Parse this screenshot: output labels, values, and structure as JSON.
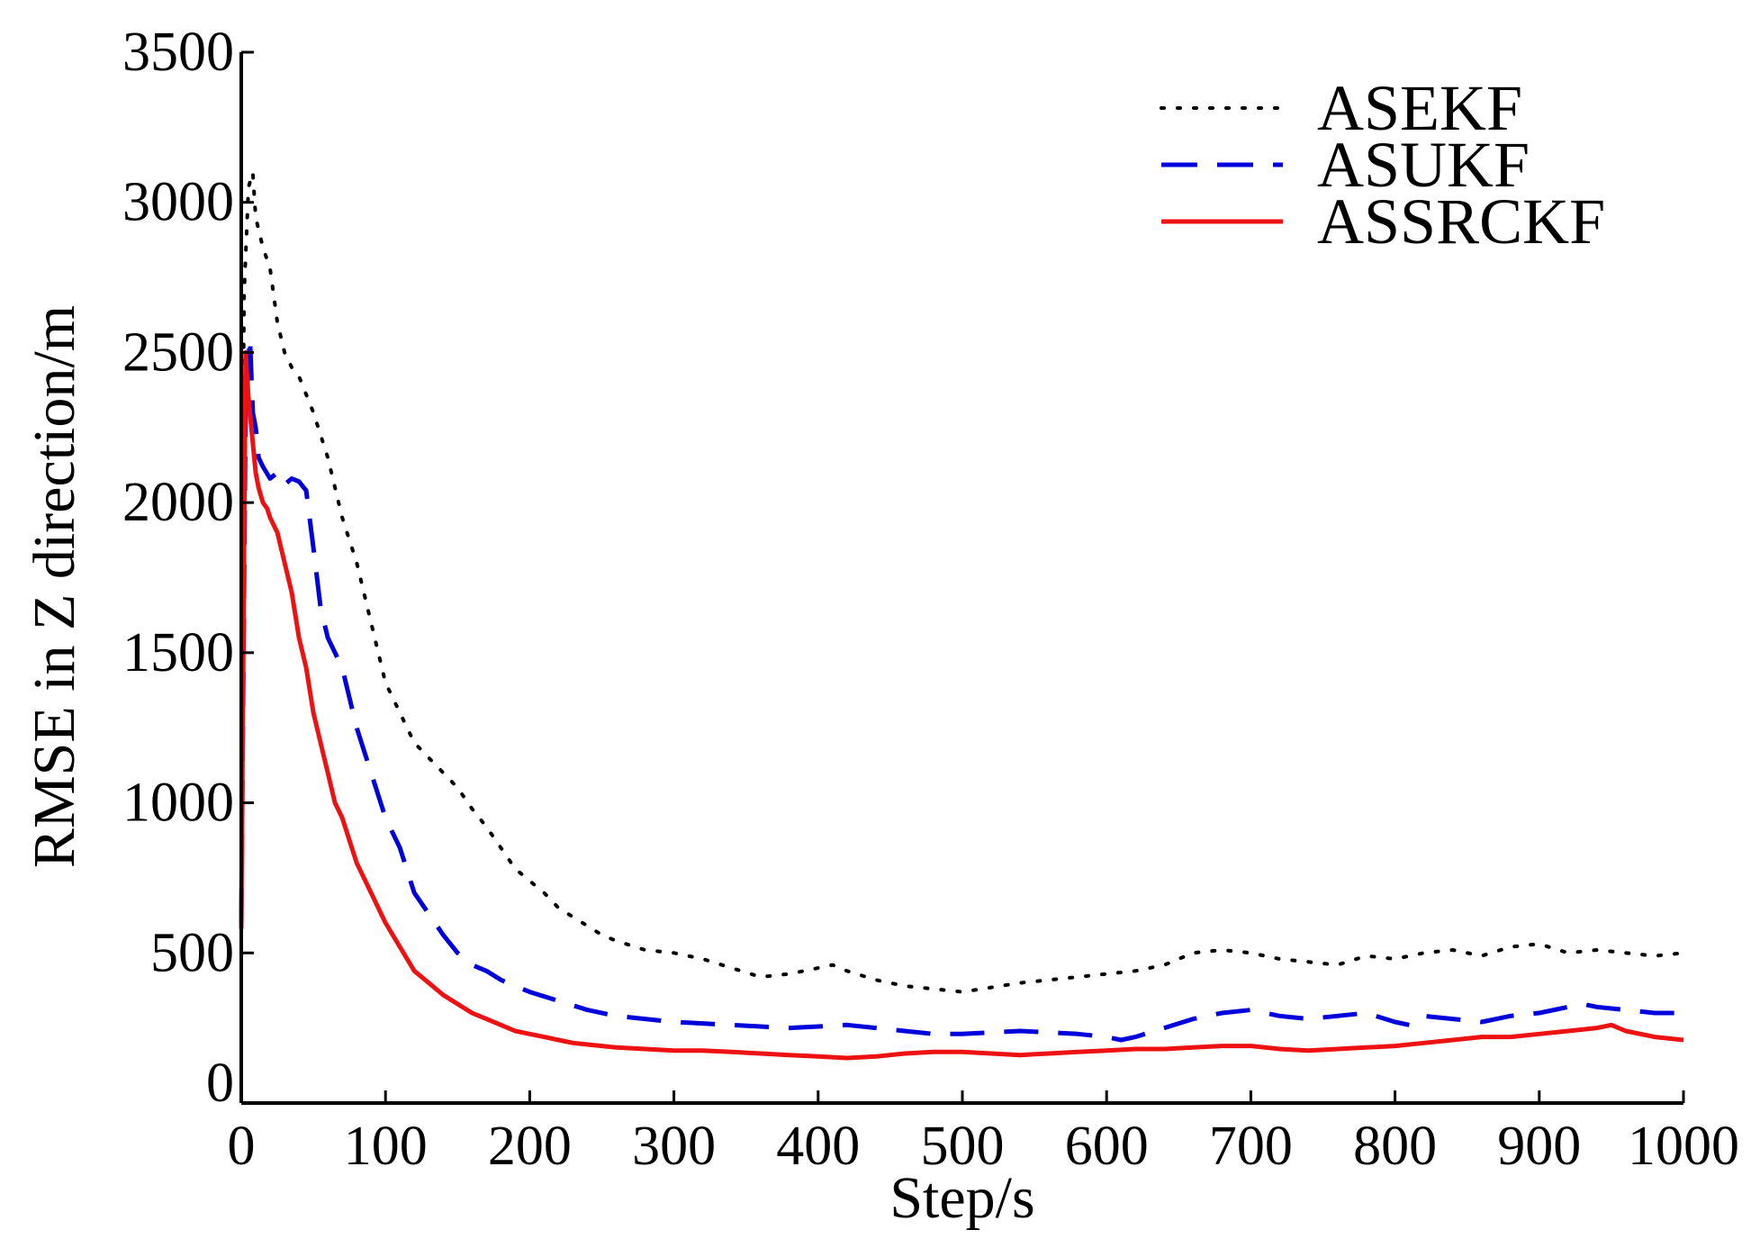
{
  "chart_data": {
    "type": "line",
    "title": "",
    "xlabel": "Step/s",
    "ylabel": "RMSE in Z direction/m",
    "xlim": [
      0,
      1000
    ],
    "ylim": [
      0,
      3500
    ],
    "xticks": [
      0,
      100,
      200,
      300,
      400,
      500,
      600,
      700,
      800,
      900,
      1000
    ],
    "yticks": [
      0,
      500,
      1000,
      1500,
      2000,
      2500,
      3000,
      3500
    ],
    "xtick_labels": [
      "0",
      "100",
      "200",
      "300",
      "400",
      "500",
      "600",
      "700",
      "800",
      "900",
      "1000"
    ],
    "ytick_labels": [
      "0",
      "500",
      "1000",
      "1500",
      "2000",
      "2500",
      "3000",
      "3500"
    ],
    "grid": false,
    "legend_position": "top-right",
    "series": [
      {
        "name": "ASEKF",
        "color": "#000000",
        "style": "dotted",
        "x": [
          0,
          2,
          5,
          8,
          10,
          15,
          20,
          25,
          30,
          35,
          40,
          50,
          60,
          70,
          80,
          90,
          100,
          110,
          120,
          130,
          140,
          150,
          160,
          170,
          180,
          190,
          200,
          210,
          220,
          230,
          240,
          250,
          260,
          280,
          300,
          320,
          340,
          360,
          380,
          400,
          410,
          420,
          440,
          460,
          480,
          500,
          520,
          540,
          560,
          580,
          600,
          620,
          640,
          660,
          680,
          700,
          720,
          740,
          760,
          780,
          800,
          820,
          840,
          860,
          880,
          900,
          920,
          940,
          960,
          980,
          1000
        ],
        "y": [
          1600,
          2700,
          3050,
          3100,
          2950,
          2850,
          2780,
          2600,
          2500,
          2450,
          2420,
          2300,
          2150,
          1950,
          1800,
          1600,
          1400,
          1300,
          1200,
          1150,
          1100,
          1050,
          980,
          920,
          850,
          780,
          740,
          700,
          650,
          620,
          590,
          560,
          540,
          510,
          500,
          480,
          450,
          420,
          430,
          450,
          460,
          440,
          410,
          390,
          380,
          370,
          385,
          400,
          410,
          420,
          430,
          440,
          460,
          500,
          510,
          500,
          480,
          470,
          460,
          490,
          480,
          500,
          510,
          490,
          520,
          530,
          500,
          510,
          500,
          490,
          500
        ]
      },
      {
        "name": "ASUKF",
        "color": "#0000dd",
        "style": "dashed",
        "x": [
          0,
          3,
          6,
          8,
          10,
          12,
          15,
          20,
          25,
          30,
          35,
          40,
          45,
          50,
          55,
          60,
          70,
          80,
          90,
          100,
          110,
          120,
          130,
          140,
          150,
          160,
          170,
          180,
          190,
          200,
          220,
          240,
          260,
          280,
          300,
          320,
          340,
          360,
          380,
          400,
          420,
          440,
          460,
          480,
          500,
          520,
          540,
          560,
          580,
          600,
          610,
          620,
          640,
          660,
          680,
          700,
          720,
          740,
          760,
          780,
          800,
          810,
          820,
          840,
          860,
          880,
          900,
          920,
          930,
          940,
          960,
          980,
          1000
        ],
        "y": [
          600,
          2300,
          2550,
          2300,
          2250,
          2150,
          2120,
          2080,
          2100,
          2060,
          2080,
          2070,
          2040,
          1850,
          1650,
          1550,
          1450,
          1250,
          1100,
          950,
          850,
          700,
          630,
          560,
          500,
          460,
          440,
          410,
          390,
          370,
          340,
          310,
          290,
          280,
          270,
          265,
          260,
          255,
          250,
          255,
          260,
          250,
          240,
          230,
          230,
          235,
          240,
          235,
          230,
          220,
          210,
          220,
          250,
          280,
          300,
          310,
          290,
          280,
          290,
          300,
          270,
          260,
          290,
          280,
          270,
          290,
          300,
          320,
          330,
          320,
          310,
          300,
          300
        ]
      },
      {
        "name": "ASSRCKF",
        "color": "#ee1111",
        "style": "solid",
        "x": [
          0,
          3,
          5,
          7,
          10,
          12,
          15,
          18,
          20,
          25,
          30,
          35,
          40,
          45,
          50,
          55,
          60,
          65,
          70,
          80,
          90,
          100,
          110,
          120,
          130,
          140,
          150,
          160,
          170,
          180,
          190,
          200,
          210,
          220,
          230,
          240,
          250,
          260,
          280,
          300,
          320,
          340,
          360,
          380,
          400,
          420,
          440,
          460,
          480,
          500,
          520,
          540,
          560,
          580,
          600,
          620,
          640,
          660,
          680,
          700,
          720,
          740,
          760,
          780,
          800,
          820,
          840,
          860,
          880,
          900,
          920,
          940,
          950,
          960,
          980,
          1000
        ],
        "y": [
          580,
          2500,
          2350,
          2250,
          2100,
          2050,
          2000,
          1980,
          1950,
          1900,
          1800,
          1700,
          1550,
          1450,
          1300,
          1200,
          1100,
          1000,
          950,
          800,
          700,
          600,
          520,
          440,
          400,
          360,
          330,
          300,
          280,
          260,
          240,
          230,
          220,
          210,
          200,
          195,
          190,
          185,
          180,
          175,
          175,
          170,
          165,
          160,
          155,
          150,
          155,
          165,
          170,
          170,
          165,
          160,
          165,
          170,
          175,
          180,
          180,
          185,
          190,
          190,
          180,
          175,
          180,
          185,
          190,
          200,
          210,
          220,
          220,
          230,
          240,
          250,
          260,
          240,
          220,
          210
        ]
      }
    ]
  }
}
